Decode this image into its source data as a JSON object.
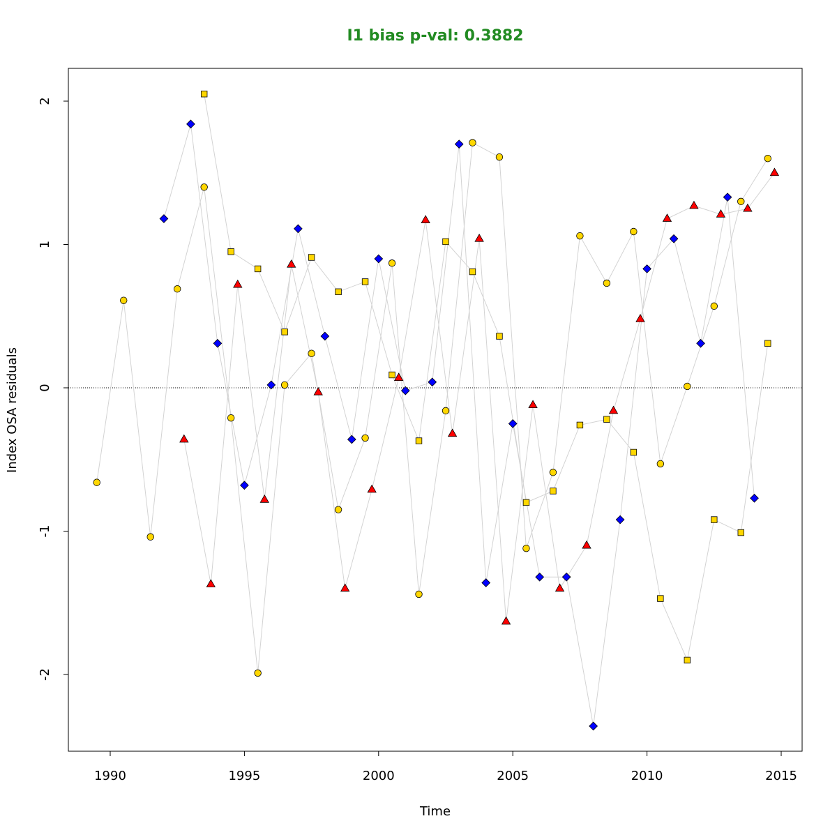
{
  "chart_data": {
    "type": "scatter",
    "title": "I1 bias p-val: 0.3882",
    "title_color": "#228B22",
    "xlabel": "Time",
    "ylabel": "Index OSA residuals",
    "xlim": [
      1988.5,
      2015.8
    ],
    "ylim": [
      -2.55,
      2.22
    ],
    "xticks": [
      1990,
      1995,
      2000,
      2005,
      2010,
      2015
    ],
    "yticks": [
      -2,
      -1,
      0,
      1,
      2
    ],
    "reference_line": 0,
    "grid": false,
    "line_color": "#d3d3d3",
    "series": [
      {
        "marker": "circle",
        "color": "#FFD700",
        "x": [
          1989.5,
          1990.5,
          1991.5,
          1992.5,
          1993.5,
          1994.5,
          1995.5,
          1996.5,
          1997.5,
          1998.5,
          1999.5,
          2000.5,
          2001.5,
          2002.5,
          2003.5,
          2004.5,
          2005.5,
          2006.5,
          2007.5,
          2008.5,
          2009.5,
          2010.5,
          2011.5,
          2012.5,
          2013.5,
          2014.5
        ],
        "y": [
          -0.66,
          0.61,
          -1.04,
          0.69,
          1.4,
          -0.21,
          -1.99,
          0.02,
          0.24,
          -0.85,
          -0.35,
          0.87,
          -1.44,
          -0.16,
          1.71,
          1.61,
          -1.12,
          -0.59,
          1.06,
          0.73,
          1.09,
          -0.53,
          0.01,
          0.57,
          1.3,
          1.6
        ]
      },
      {
        "marker": "square",
        "color": "#FFD700",
        "x": [
          1993.5,
          1994.5,
          1995.5,
          1996.5,
          1997.5,
          1998.5,
          1999.5,
          2000.5,
          2001.5,
          2002.5,
          2003.5,
          2004.5,
          2005.5,
          2006.5,
          2007.5,
          2008.5,
          2009.5,
          2010.5,
          2011.5,
          2012.5,
          2013.5,
          2014.5
        ],
        "y": [
          2.05,
          0.95,
          0.83,
          0.39,
          0.91,
          0.67,
          0.74,
          0.09,
          -0.37,
          1.02,
          0.81,
          0.36,
          -0.8,
          -0.72,
          -0.26,
          -0.22,
          -0.45,
          -1.47,
          -1.9,
          -0.92,
          -1.01,
          0.31
        ]
      },
      {
        "marker": "diamond",
        "color": "#0000FF",
        "x": [
          1992,
          1993,
          1994,
          1995,
          1996,
          1997,
          1998,
          1999,
          2000,
          2001,
          2002,
          2003,
          2004,
          2005,
          2006,
          2007,
          2008,
          2009,
          2010,
          2011,
          2012,
          2013,
          2014
        ],
        "y": [
          1.18,
          1.84,
          0.31,
          -0.68,
          0.02,
          1.11,
          0.36,
          -0.36,
          0.9,
          -0.02,
          0.04,
          1.7,
          -1.36,
          -0.25,
          -1.32,
          -1.32,
          -2.36,
          -0.92,
          0.83,
          1.04,
          0.31,
          1.33,
          -0.77
        ]
      },
      {
        "marker": "triangle",
        "color": "#FF0000",
        "x": [
          1992.75,
          1993.75,
          1994.75,
          1995.75,
          1996.75,
          1997.75,
          1998.75,
          1999.75,
          2000.75,
          2001.75,
          2002.75,
          2003.75,
          2004.75,
          2005.75,
          2006.75,
          2007.75,
          2008.75,
          2009.75,
          2010.75,
          2011.75,
          2012.75,
          2013.75,
          2014.75
        ],
        "y": [
          -0.36,
          -1.37,
          0.72,
          -0.78,
          0.86,
          -0.03,
          -1.4,
          -0.71,
          0.07,
          1.17,
          -0.32,
          1.04,
          -1.63,
          -0.12,
          -1.4,
          -1.1,
          -0.16,
          0.48,
          1.18,
          1.27,
          1.21,
          1.25,
          1.5
        ]
      }
    ]
  }
}
